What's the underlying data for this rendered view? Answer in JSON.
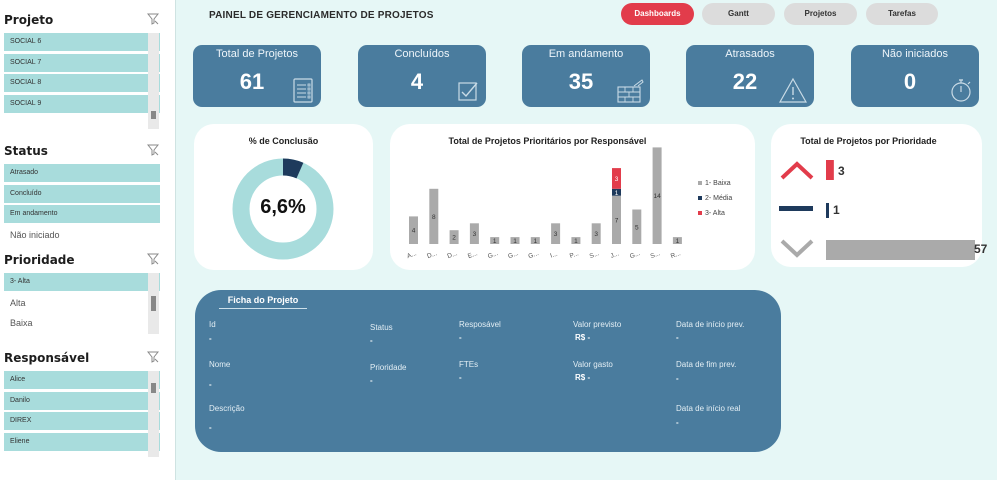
{
  "header": {
    "title": "PAINEL DE GERENCIAMENTO DE PROJETOS",
    "nav": [
      "Dashboards",
      "Gantt",
      "Projetos",
      "Tarefas"
    ]
  },
  "sidebar": {
    "projeto": {
      "title": "Projeto",
      "items": [
        "SOCIAL 6",
        "SOCIAL 7",
        "SOCIAL 8",
        "SOCIAL 9"
      ]
    },
    "status": {
      "title": "Status",
      "items": [
        "Atrasado",
        "Concluído",
        "Em andamento",
        "Não iniciado"
      ]
    },
    "prioridade": {
      "title": "Prioridade",
      "items": [
        "3- Alta",
        "Alta",
        "Baixa"
      ]
    },
    "responsavel": {
      "title": "Responsável",
      "items": [
        "Alice",
        "Danilo",
        "DIREX",
        "Eliene"
      ]
    }
  },
  "kpis": [
    {
      "label": "Total de Projetos",
      "value": "61",
      "icon": "clipboard-list-icon"
    },
    {
      "label": "Concluídos",
      "value": "4",
      "icon": "checkbox-icon"
    },
    {
      "label": "Em andamento",
      "value": "35",
      "icon": "brick-wall-icon"
    },
    {
      "label": "Atrasados",
      "value": "22",
      "icon": "warning-icon"
    },
    {
      "label": "Não iniciados",
      "value": "0",
      "icon": "stopwatch-icon"
    }
  ],
  "donut": {
    "title": "% de Conclusão",
    "value_label": "6,6%",
    "percent": 6.6
  },
  "chart_data": [
    {
      "type": "bar",
      "title": "Total de Projetos Prioritários por Responsável",
      "categories": [
        "A...",
        "D...",
        "D...",
        "E...",
        "G...",
        "G...",
        "G...",
        "I...",
        "P...",
        "S...",
        "J...",
        "G...",
        "S...",
        "R..."
      ],
      "series": [
        {
          "name": "1- Baixa",
          "color": "#aaaaaa",
          "values": [
            4,
            8,
            2,
            3,
            1,
            1,
            1,
            3,
            1,
            3,
            7,
            5,
            14,
            1
          ]
        },
        {
          "name": "2- Média",
          "color": "#1e3a5c",
          "values": [
            0,
            0,
            0,
            0,
            0,
            0,
            0,
            0,
            0,
            0,
            1,
            0,
            0,
            0
          ]
        },
        {
          "name": "3- Alta",
          "color": "#e23c4b",
          "values": [
            0,
            0,
            0,
            0,
            0,
            0,
            0,
            0,
            0,
            0,
            3,
            0,
            0,
            0
          ]
        }
      ],
      "stack_labels": [
        [
          "4"
        ],
        [
          "8"
        ],
        [
          "2"
        ],
        [
          "3"
        ],
        [
          "1"
        ],
        [
          "1"
        ],
        [
          "1"
        ],
        [
          "3"
        ],
        [
          "1"
        ],
        [
          "3"
        ],
        [
          "7",
          "1",
          "3"
        ],
        [
          "5"
        ],
        [
          "14"
        ],
        [
          "1"
        ]
      ],
      "legend_position": "right"
    },
    {
      "type": "bar",
      "title": "Total de Projetos por Prioridade",
      "categories": [
        "Alta",
        "Média",
        "Baixa"
      ],
      "values": [
        3,
        1,
        57
      ],
      "colors": [
        "#e23c4b",
        "#1e3a5c",
        "#aaaaaa"
      ]
    }
  ],
  "priority_labels": [
    "3",
    "1",
    "57"
  ],
  "ficha": {
    "title": "Ficha do Projeto",
    "fields": {
      "id": {
        "label": "Id",
        "value": "-"
      },
      "nome": {
        "label": "Nome",
        "value": "-"
      },
      "descricao": {
        "label": "Descrição",
        "value": "-"
      },
      "status": {
        "label": "Status",
        "value": "-"
      },
      "prioridade": {
        "label": "Prioridade",
        "value": "-"
      },
      "responsavel": {
        "label": "Resposável",
        "value": "-"
      },
      "ftes": {
        "label": "FTEs",
        "value": "-"
      },
      "valor_previsto": {
        "label": "Valor previsto",
        "value": "R$ -"
      },
      "valor_gasto": {
        "label": "Valor gasto",
        "value": "R$ -"
      },
      "inicio_prev": {
        "label": "Data de início prev.",
        "value": "-"
      },
      "fim_prev": {
        "label": "Data de fim prev.",
        "value": "-"
      },
      "inicio_real": {
        "label": "Data de início real",
        "value": "-"
      }
    }
  }
}
